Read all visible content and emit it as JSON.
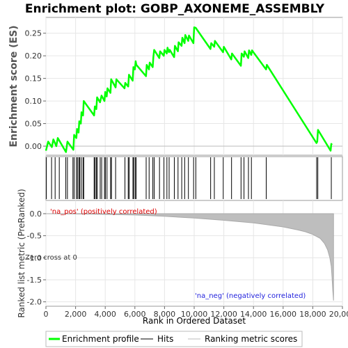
{
  "chart_data": {
    "type": "line",
    "title": "Enrichment plot: GOBP_AXONEME_ASSEMBLY",
    "top_panel": {
      "ylabel": "Enrichment score (ES)",
      "ylim": [
        -0.02,
        0.285
      ],
      "yticks": [
        0.0,
        0.05,
        0.1,
        0.15,
        0.2,
        0.25
      ],
      "ytick_labels": [
        "0.00",
        "0.05",
        "0.10",
        "0.15",
        "0.20",
        "0.25"
      ],
      "series": [
        {
          "name": "Enrichment profile",
          "color": "#00ff00",
          "x": [
            0,
            150,
            400,
            500,
            700,
            800,
            1350,
            1450,
            1850,
            1900,
            2050,
            2100,
            2200,
            2250,
            2350,
            2400,
            2500,
            2550,
            3250,
            3300,
            3400,
            3450,
            3650,
            3750,
            3950,
            4000,
            4100,
            4150,
            4350,
            4400,
            4700,
            4750,
            5300,
            5350,
            5550,
            5600,
            5850,
            5900,
            6000,
            6050,
            6100,
            6750,
            6800,
            6950,
            7000,
            7200,
            7250,
            7300,
            7650,
            7700,
            7950,
            8000,
            8150,
            8200,
            8300,
            8350,
            8650,
            8700,
            8900,
            8950,
            9150,
            9200,
            9350,
            9400,
            9600,
            9650,
            9950,
            10000,
            10100,
            11100,
            11150,
            11350,
            11400,
            11950,
            12000,
            12500,
            12550,
            13150,
            13200,
            13350,
            13400,
            13650,
            13700,
            13850,
            13900,
            14850,
            14900,
            18250,
            18300,
            18350,
            19200,
            19250,
            19300
          ],
          "y": [
            -0.01,
            0.01,
            -0.002,
            0.015,
            0.0,
            0.018,
            -0.013,
            0.01,
            -0.008,
            0.025,
            0.018,
            0.038,
            0.03,
            0.055,
            0.05,
            0.075,
            0.068,
            0.1,
            0.068,
            0.088,
            0.082,
            0.108,
            0.097,
            0.112,
            0.1,
            0.12,
            0.11,
            0.128,
            0.118,
            0.148,
            0.13,
            0.148,
            0.128,
            0.14,
            0.132,
            0.158,
            0.145,
            0.175,
            0.17,
            0.188,
            0.18,
            0.155,
            0.18,
            0.17,
            0.185,
            0.175,
            0.198,
            0.213,
            0.195,
            0.21,
            0.2,
            0.213,
            0.205,
            0.218,
            0.208,
            0.213,
            0.197,
            0.222,
            0.21,
            0.23,
            0.222,
            0.24,
            0.228,
            0.246,
            0.233,
            0.245,
            0.228,
            0.263,
            0.262,
            0.215,
            0.228,
            0.22,
            0.233,
            0.208,
            0.22,
            0.192,
            0.205,
            0.178,
            0.205,
            0.198,
            0.21,
            0.195,
            0.212,
            0.202,
            0.212,
            0.17,
            0.18,
            0.007,
            0.01,
            0.036,
            -0.01,
            0.005,
            0.003
          ]
        }
      ]
    },
    "hits_panel": {
      "series_name": "Hits",
      "hit_positions": [
        30,
        380,
        620,
        900,
        1340,
        1450,
        1820,
        1900,
        2050,
        2130,
        2220,
        2280,
        2380,
        2500,
        2550,
        3250,
        3310,
        3400,
        3460,
        3660,
        3760,
        3950,
        4010,
        4120,
        4360,
        4420,
        4700,
        5330,
        5550,
        5610,
        5870,
        5920,
        6020,
        6080,
        6760,
        6960,
        7210,
        7300,
        7660,
        7960,
        8160,
        8310,
        8660,
        8910,
        9160,
        9360,
        9610,
        9960,
        10110,
        11110,
        11360,
        11960,
        12520,
        13160,
        13360,
        13660,
        13860,
        14860,
        18260,
        18340,
        19250
      ]
    },
    "metric_panel": {
      "ylabel": "Ranked list metric (PreRanked)",
      "series_name": "Ranking metric scores",
      "ylim": [
        -2.1,
        0.3
      ],
      "yticks": [
        0.0,
        -0.5,
        -1.0,
        -1.5,
        -2.0
      ],
      "ytick_labels": [
        "0.0",
        "-0.5",
        "-1.0",
        "-1.5",
        "-2.0"
      ],
      "x": [
        0,
        3000,
        6000,
        8000,
        10000,
        12000,
        14000,
        16000,
        17000,
        17500,
        18000,
        18500,
        18800,
        19000,
        19150,
        19250,
        19300,
        19350,
        19400
      ],
      "y": [
        0.0,
        -0.01,
        -0.03,
        -0.06,
        -0.1,
        -0.15,
        -0.21,
        -0.3,
        -0.37,
        -0.41,
        -0.47,
        -0.56,
        -0.68,
        -0.82,
        -1.0,
        -1.2,
        -1.45,
        -1.75,
        -1.97
      ],
      "pos_label": "'na_pos' (positively correlated)",
      "neg_label": "'na_neg' (negatively correlated)",
      "zero_cross_label": "Zero cross at 0"
    },
    "xlabel": "Rank in Ordered Dataset",
    "xlim": [
      0,
      20000
    ],
    "xticks": [
      0,
      2000,
      4000,
      6000,
      8000,
      10000,
      12000,
      14000,
      16000,
      18000,
      20000
    ],
    "xtick_labels": [
      "0",
      "2,000",
      "4,000",
      "6,000",
      "8,000",
      "10,000",
      "12,000",
      "14,000",
      "16,000",
      "18,000",
      "20,000"
    ],
    "n_genes": 19400,
    "heatmap_segments": [
      {
        "from": 0,
        "to": 10100,
        "color": "#ccccff"
      },
      {
        "from": 10100,
        "to": 12500,
        "color": "#8888ff"
      },
      {
        "from": 12500,
        "to": 18300,
        "color": "#6a5bea"
      },
      {
        "from": 18300,
        "to": 19400,
        "color": "#2b00d0"
      }
    ],
    "legend": {
      "placement": "bottom",
      "entries": [
        {
          "label": "Enrichment profile",
          "color": "#00ff00"
        },
        {
          "label": "Hits",
          "color": "#000000"
        },
        {
          "label": "Ranking metric scores",
          "color": "#bbbbbb"
        }
      ]
    },
    "colors": {
      "profile": "#00ff00",
      "hits": "#000000",
      "metric_fill": "#bebebe",
      "pos_label": "#dd0000",
      "neg_label": "#2222dd"
    }
  }
}
